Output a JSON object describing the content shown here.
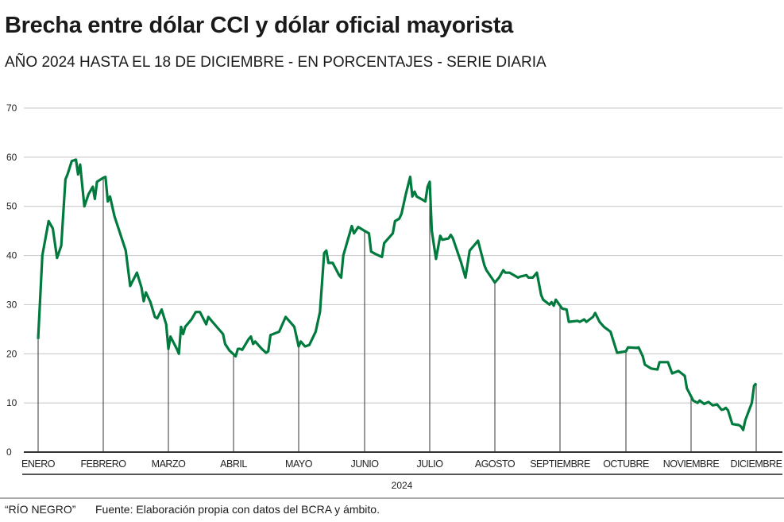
{
  "title": "Brecha entre dólar CCl y dólar oficial mayorista",
  "subtitle": "AÑO 2024 HASTA EL 18 DE DICIEMBRE - EN PORCENTAJES - SERIE DIARIA",
  "footer": {
    "brand": "“RÍO NEGRO”",
    "source": "Fuente: Elaboración propia con datos del BCRA y ámbito."
  },
  "chart_data": {
    "type": "line",
    "title": "Brecha entre dólar CCl y dólar oficial mayorista",
    "xlabel": "2024",
    "ylabel": "",
    "ylim": [
      0,
      70
    ],
    "yticks": [
      0,
      10,
      20,
      30,
      40,
      50,
      60,
      70
    ],
    "grid": true,
    "color": "#007a3d",
    "xtick_labels": [
      "ENERO",
      "FEBRERO",
      "MARZO",
      "ABRIL",
      "MAYO",
      "JUNIO",
      "JULIO",
      "AGOSTO",
      "SEPTIEMBRE",
      "OCTUBRE",
      "NOVIEMBRE",
      "DICIEMBRE"
    ],
    "series": [
      {
        "points": [
          [
            "2024-01-01",
            23
          ],
          [
            "2024-01-03",
            40
          ],
          [
            "2024-01-06",
            47
          ],
          [
            "2024-01-08",
            45.5
          ],
          [
            "2024-01-10",
            39.5
          ],
          [
            "2024-01-12",
            42
          ],
          [
            "2024-01-14",
            55.5
          ],
          [
            "2024-01-15",
            56.5
          ],
          [
            "2024-01-17",
            59.2
          ],
          [
            "2024-01-19",
            59.5
          ],
          [
            "2024-01-20",
            56.5
          ],
          [
            "2024-01-21",
            58.5
          ],
          [
            "2024-01-23",
            50
          ],
          [
            "2024-01-25",
            52.5
          ],
          [
            "2024-01-27",
            54
          ],
          [
            "2024-01-28",
            51.5
          ],
          [
            "2024-01-29",
            55
          ],
          [
            "2024-02-01",
            55.8
          ],
          [
            "2024-02-02",
            56
          ],
          [
            "2024-02-03",
            51
          ],
          [
            "2024-02-04",
            52
          ],
          [
            "2024-02-06",
            48
          ],
          [
            "2024-02-11",
            41
          ],
          [
            "2024-02-13",
            33.8
          ],
          [
            "2024-02-16",
            36.5
          ],
          [
            "2024-02-18",
            33.5
          ],
          [
            "2024-02-19",
            30.7
          ],
          [
            "2024-02-20",
            32.5
          ],
          [
            "2024-02-22",
            30.5
          ],
          [
            "2024-02-24",
            27.5
          ],
          [
            "2024-02-25",
            27.2
          ],
          [
            "2024-02-27",
            29
          ],
          [
            "2024-02-29",
            26
          ],
          [
            "2024-03-01",
            21
          ],
          [
            "2024-03-02",
            23.5
          ],
          [
            "2024-03-05",
            21
          ],
          [
            "2024-03-06",
            20
          ],
          [
            "2024-03-07",
            25.5
          ],
          [
            "2024-03-08",
            24
          ],
          [
            "2024-03-09",
            25.5
          ],
          [
            "2024-03-12",
            27
          ],
          [
            "2024-03-14",
            28.5
          ],
          [
            "2024-03-16",
            28.5
          ],
          [
            "2024-03-19",
            26
          ],
          [
            "2024-03-20",
            27.5
          ],
          [
            "2024-03-22",
            26.5
          ],
          [
            "2024-03-27",
            24
          ],
          [
            "2024-03-28",
            22
          ],
          [
            "2024-03-30",
            20.7
          ],
          [
            "2024-04-02",
            19.5
          ],
          [
            "2024-04-03",
            21
          ],
          [
            "2024-04-04",
            21
          ],
          [
            "2024-04-05",
            20.8
          ],
          [
            "2024-04-08",
            23
          ],
          [
            "2024-04-09",
            23.5
          ],
          [
            "2024-04-10",
            22
          ],
          [
            "2024-04-11",
            22.5
          ],
          [
            "2024-04-14",
            21
          ],
          [
            "2024-04-16",
            20.2
          ],
          [
            "2024-04-17",
            20.5
          ],
          [
            "2024-04-18",
            23.8
          ],
          [
            "2024-04-22",
            24.5
          ],
          [
            "2024-04-25",
            27.5
          ],
          [
            "2024-04-27",
            26.5
          ],
          [
            "2024-04-29",
            25.5
          ],
          [
            "2024-05-01",
            21.5
          ],
          [
            "2024-05-02",
            22.5
          ],
          [
            "2024-05-04",
            21.5
          ],
          [
            "2024-05-06",
            21.8
          ],
          [
            "2024-05-09",
            24.5
          ],
          [
            "2024-05-11",
            28.5
          ],
          [
            "2024-05-13",
            40.5
          ],
          [
            "2024-05-14",
            41
          ],
          [
            "2024-05-15",
            38.5
          ],
          [
            "2024-05-17",
            38.5
          ],
          [
            "2024-05-20",
            36
          ],
          [
            "2024-05-21",
            35.5
          ],
          [
            "2024-05-22",
            40
          ],
          [
            "2024-05-26",
            46
          ],
          [
            "2024-05-27",
            44.5
          ],
          [
            "2024-05-29",
            45.8
          ],
          [
            "2024-06-01",
            45
          ],
          [
            "2024-06-03",
            44.5
          ],
          [
            "2024-06-04",
            40.8
          ],
          [
            "2024-06-06",
            40.3
          ],
          [
            "2024-06-09",
            39.7
          ],
          [
            "2024-06-10",
            42.5
          ],
          [
            "2024-06-14",
            44.5
          ],
          [
            "2024-06-15",
            47
          ],
          [
            "2024-06-17",
            47.5
          ],
          [
            "2024-06-18",
            48.5
          ],
          [
            "2024-06-20",
            52.5
          ],
          [
            "2024-06-22",
            56
          ],
          [
            "2024-06-23",
            52
          ],
          [
            "2024-06-24",
            53
          ],
          [
            "2024-06-25",
            52
          ],
          [
            "2024-06-27",
            51.5
          ],
          [
            "2024-06-29",
            51
          ],
          [
            "2024-06-30",
            54
          ],
          [
            "2024-07-01",
            55
          ],
          [
            "2024-07-02",
            45
          ],
          [
            "2024-07-04",
            39.3
          ],
          [
            "2024-07-06",
            44
          ],
          [
            "2024-07-07",
            43.2
          ],
          [
            "2024-07-10",
            43.5
          ],
          [
            "2024-07-11",
            44.2
          ],
          [
            "2024-07-12",
            43.5
          ],
          [
            "2024-07-16",
            38.5
          ],
          [
            "2024-07-18",
            35.5
          ],
          [
            "2024-07-20",
            41
          ],
          [
            "2024-07-23",
            42.5
          ],
          [
            "2024-07-24",
            43
          ],
          [
            "2024-07-27",
            38
          ],
          [
            "2024-07-28",
            37
          ],
          [
            "2024-08-01",
            34.5
          ],
          [
            "2024-08-03",
            35.5
          ],
          [
            "2024-08-05",
            37
          ],
          [
            "2024-08-06",
            36.5
          ],
          [
            "2024-08-08",
            36.5
          ],
          [
            "2024-08-10",
            36
          ],
          [
            "2024-08-12",
            35.5
          ],
          [
            "2024-08-13",
            35.7
          ],
          [
            "2024-08-16",
            36
          ],
          [
            "2024-08-17",
            35.5
          ],
          [
            "2024-08-19",
            35.5
          ],
          [
            "2024-08-20",
            36
          ],
          [
            "2024-08-21",
            36.5
          ],
          [
            "2024-08-23",
            32
          ],
          [
            "2024-08-24",
            31
          ],
          [
            "2024-08-27",
            30
          ],
          [
            "2024-08-28",
            30.5
          ],
          [
            "2024-08-29",
            29.8
          ],
          [
            "2024-08-30",
            31
          ],
          [
            "2024-09-02",
            29.2
          ],
          [
            "2024-09-04",
            29
          ],
          [
            "2024-09-05",
            26.5
          ],
          [
            "2024-09-09",
            26.7
          ],
          [
            "2024-09-10",
            26.5
          ],
          [
            "2024-09-12",
            27
          ],
          [
            "2024-09-13",
            26.5
          ],
          [
            "2024-09-16",
            27.5
          ],
          [
            "2024-09-17",
            28.3
          ],
          [
            "2024-09-19",
            26.5
          ],
          [
            "2024-09-21",
            25.5
          ],
          [
            "2024-09-24",
            24.5
          ],
          [
            "2024-09-27",
            20.2
          ],
          [
            "2024-10-01",
            20.5
          ],
          [
            "2024-10-02",
            21.3
          ],
          [
            "2024-10-06",
            21.2
          ],
          [
            "2024-10-07",
            21.3
          ],
          [
            "2024-10-09",
            19.5
          ],
          [
            "2024-10-10",
            17.8
          ],
          [
            "2024-10-13",
            17
          ],
          [
            "2024-10-16",
            16.8
          ],
          [
            "2024-10-17",
            18.3
          ],
          [
            "2024-10-21",
            18.3
          ],
          [
            "2024-10-23",
            16
          ],
          [
            "2024-10-26",
            16.5
          ],
          [
            "2024-10-29",
            15.5
          ],
          [
            "2024-10-30",
            13
          ],
          [
            "2024-11-02",
            10.5
          ],
          [
            "2024-11-04",
            10
          ],
          [
            "2024-11-05",
            10.5
          ],
          [
            "2024-11-07",
            9.8
          ],
          [
            "2024-11-09",
            10.2
          ],
          [
            "2024-11-11",
            9.5
          ],
          [
            "2024-11-13",
            9.7
          ],
          [
            "2024-11-15",
            8.6
          ],
          [
            "2024-11-16",
            8.7
          ],
          [
            "2024-11-17",
            9
          ],
          [
            "2024-11-18",
            8.5
          ],
          [
            "2024-11-20",
            5.7
          ],
          [
            "2024-11-23",
            5.5
          ],
          [
            "2024-11-24",
            5.2
          ],
          [
            "2024-11-25",
            4.5
          ],
          [
            "2024-11-26",
            6.5
          ],
          [
            "2024-11-29",
            10
          ],
          [
            "2024-11-30",
            13.5
          ],
          [
            "2024-12-01",
            14
          ]
        ]
      }
    ]
  }
}
